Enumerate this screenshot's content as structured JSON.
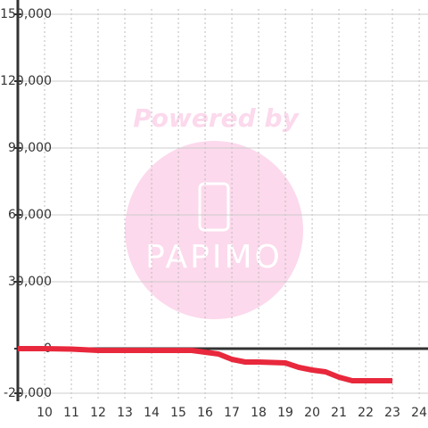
{
  "chart_data": {
    "type": "line",
    "watermark": {
      "title": "Powered by",
      "logo_text": "PAPIMO"
    },
    "x": [
      9,
      10,
      11,
      12,
      13,
      14,
      15,
      15.5,
      16,
      16.5,
      17,
      17.5,
      18,
      19,
      19.5,
      20,
      20.5,
      21,
      21.5,
      22,
      23
    ],
    "series": [
      {
        "color": "#e8283c",
        "values": [
          0,
          0,
          -200,
          -800,
          -800,
          -800,
          -800,
          -800,
          -1600,
          -2400,
          -4800,
          -6000,
          -6000,
          -6400,
          -8400,
          -9600,
          -10400,
          -12800,
          -14400,
          -14400,
          -14400
        ]
      }
    ],
    "xlim": [
      9,
      24.33
    ],
    "xticks": [
      10,
      11,
      12,
      13,
      14,
      15,
      16,
      17,
      18,
      19,
      20,
      21,
      22,
      23,
      24
    ],
    "ylim": [
      -20000,
      150000
    ],
    "yticks": [
      {
        "value": -20000,
        "label": "-20,000"
      },
      0,
      {
        "value": 30000,
        "label": "30,000"
      },
      {
        "value": 60000,
        "label": "60,000"
      },
      {
        "value": 90000,
        "label": "90,000"
      },
      {
        "value": 120000,
        "label": "120,000"
      },
      {
        "value": 150000,
        "label": "150,000"
      }
    ],
    "grid": true
  }
}
